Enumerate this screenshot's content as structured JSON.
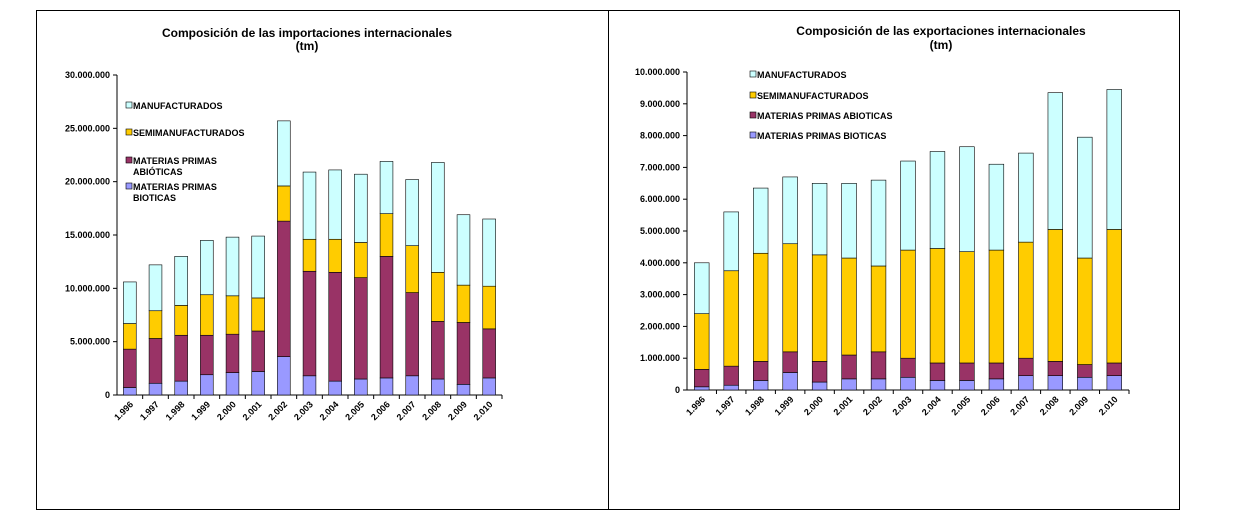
{
  "colors": {
    "materias_primas_bioticas": "#9999ff",
    "materias_primas_abioticas": "#993366",
    "semimanufacturados": "#ffcc00",
    "manufacturados": "#ccffff",
    "outline": "#000000"
  },
  "chart_data": [
    {
      "type": "bar",
      "stacked": true,
      "title_lines": [
        "Composición de las importaciones internacionales",
        "(tm)"
      ],
      "categories": [
        "1.996",
        "1.997",
        "1.998",
        "1.999",
        "2.000",
        "2.001",
        "2.002",
        "2.003",
        "2.004",
        "2.005",
        "2.006",
        "2.007",
        "2.008",
        "2.009",
        "2.010"
      ],
      "ylim": [
        0,
        30000000
      ],
      "yticks": [
        {
          "value": 0,
          "label": "0"
        },
        {
          "value": 5000000,
          "label": "5.000.000"
        },
        {
          "value": 10000000,
          "label": "10.000.000"
        },
        {
          "value": 15000000,
          "label": "15.000.000"
        },
        {
          "value": 20000000,
          "label": "20.000.000"
        },
        {
          "value": 25000000,
          "label": "25.000.000"
        },
        {
          "value": 30000000,
          "label": "30.000.000"
        }
      ],
      "grid": false,
      "legend_position": "top-left",
      "legend": [
        {
          "key": "manufacturados",
          "lines": [
            "MANUFACTURADOS"
          ]
        },
        {
          "key": "semimanufacturados",
          "lines": [
            "SEMIMANUFACTURADOS"
          ]
        },
        {
          "key": "materias_primas_abioticas",
          "lines": [
            "MATERIAS PRIMAS",
            "ABIÓTICAS"
          ]
        },
        {
          "key": "materias_primas_bioticas",
          "lines": [
            "MATERIAS PRIMAS",
            "BIOTICAS"
          ]
        }
      ],
      "series": [
        {
          "key": "materias_primas_bioticas",
          "values": [
            700000,
            1100000,
            1300000,
            1900000,
            2100000,
            2200000,
            3600000,
            1800000,
            1300000,
            1500000,
            1600000,
            1800000,
            1500000,
            1000000,
            1600000
          ]
        },
        {
          "key": "materias_primas_abioticas",
          "values": [
            3600000,
            4200000,
            4300000,
            3700000,
            3600000,
            3800000,
            12700000,
            9800000,
            10200000,
            9500000,
            11400000,
            7800000,
            5400000,
            5800000,
            4600000
          ]
        },
        {
          "key": "semimanufacturados",
          "values": [
            2400000,
            2600000,
            2800000,
            3800000,
            3600000,
            3100000,
            3300000,
            3000000,
            3100000,
            3300000,
            4000000,
            4400000,
            4600000,
            3500000,
            4000000
          ]
        },
        {
          "key": "manufacturados",
          "values": [
            3900000,
            4300000,
            4600000,
            5100000,
            5500000,
            5800000,
            6100000,
            6300000,
            6500000,
            6400000,
            4900000,
            6200000,
            10300000,
            6600000,
            6300000
          ]
        }
      ]
    },
    {
      "type": "bar",
      "stacked": true,
      "title_lines": [
        "Composición de las exportaciones internacionales",
        "(tm)"
      ],
      "categories": [
        "1.996",
        "1.997",
        "1.998",
        "1.999",
        "2.000",
        "2.001",
        "2.002",
        "2.003",
        "2.004",
        "2.005",
        "2.006",
        "2.007",
        "2.008",
        "2.009",
        "2.010"
      ],
      "ylim": [
        0,
        10000000
      ],
      "yticks": [
        {
          "value": 0,
          "label": "0"
        },
        {
          "value": 1000000,
          "label": "1.000.000"
        },
        {
          "value": 2000000,
          "label": "2.000.000"
        },
        {
          "value": 3000000,
          "label": "3.000.000"
        },
        {
          "value": 4000000,
          "label": "4.000.000"
        },
        {
          "value": 5000000,
          "label": "5.000.000"
        },
        {
          "value": 6000000,
          "label": "6.000.000"
        },
        {
          "value": 7000000,
          "label": "7.000.000"
        },
        {
          "value": 8000000,
          "label": "8.000.000"
        },
        {
          "value": 9000000,
          "label": "9.000.000"
        },
        {
          "value": 10000000,
          "label": "10.000.000"
        }
      ],
      "grid": false,
      "legend_position": "top-left",
      "legend": [
        {
          "key": "manufacturados",
          "lines": [
            "MANUFACTURADOS"
          ]
        },
        {
          "key": "semimanufacturados",
          "lines": [
            "SEMIMANUFACTURADOS"
          ]
        },
        {
          "key": "materias_primas_abioticas",
          "lines": [
            "MATERIAS PRIMAS ABIOTICAS"
          ]
        },
        {
          "key": "materias_primas_bioticas",
          "lines": [
            "MATERIAS PRIMAS BIOTICAS"
          ]
        }
      ],
      "series": [
        {
          "key": "materias_primas_bioticas",
          "values": [
            100000,
            150000,
            300000,
            550000,
            250000,
            350000,
            350000,
            400000,
            300000,
            300000,
            350000,
            450000,
            450000,
            400000,
            450000
          ]
        },
        {
          "key": "materias_primas_abioticas",
          "values": [
            550000,
            600000,
            600000,
            650000,
            650000,
            750000,
            850000,
            600000,
            550000,
            550000,
            500000,
            550000,
            450000,
            400000,
            400000
          ]
        },
        {
          "key": "semimanufacturados",
          "values": [
            1750000,
            3000000,
            3400000,
            3400000,
            3350000,
            3050000,
            2700000,
            3400000,
            3600000,
            3500000,
            3550000,
            3650000,
            4150000,
            3350000,
            4200000
          ]
        },
        {
          "key": "manufacturados",
          "values": [
            1600000,
            1850000,
            2050000,
            2100000,
            2250000,
            2350000,
            2700000,
            2800000,
            3050000,
            3300000,
            2700000,
            2800000,
            4300000,
            3800000,
            4400000
          ]
        }
      ]
    }
  ]
}
